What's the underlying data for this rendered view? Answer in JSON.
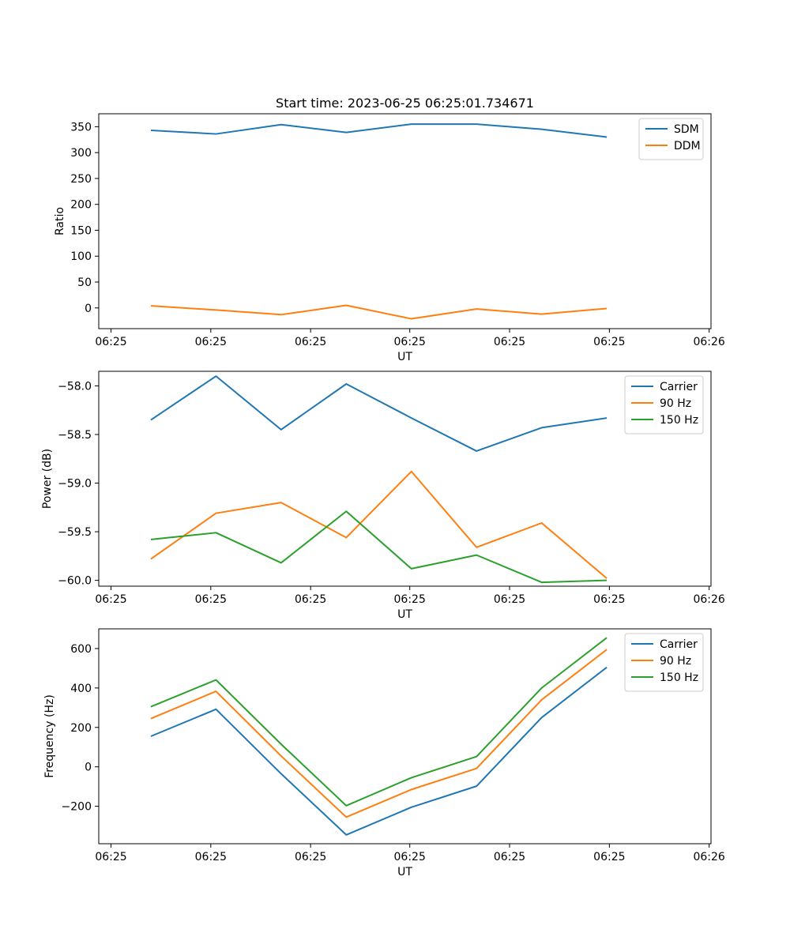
{
  "figure": {
    "title": "Start time: 2023-06-25 06:25:01.734671"
  },
  "colors": {
    "blue": "#1f77b4",
    "orange": "#ff7f0e",
    "green": "#2ca02c"
  },
  "chart_data": [
    {
      "type": "line",
      "title": "Start time: 2023-06-25 06:25:01.734671",
      "xlabel": "UT",
      "ylabel": "Ratio",
      "x": [
        "06:25:02.5",
        "06:25:03.0",
        "06:25:03.5",
        "06:25:04.0",
        "06:25:04.5",
        "06:25:05.0",
        "06:25:05.5",
        "06:25:06.0"
      ],
      "xlim": [
        "06:25:02.1",
        "06:25:06.8"
      ],
      "xtick_labels": [
        "06:25",
        "06:25",
        "06:25",
        "06:25",
        "06:25",
        "06:25",
        "06:26"
      ],
      "ylim": [
        -40,
        375
      ],
      "yticks": [
        0,
        50,
        100,
        150,
        200,
        250,
        300,
        350
      ],
      "legend": "top-right",
      "grid": false,
      "series": [
        {
          "name": "SDM",
          "color": "#1f77b4",
          "values": [
            343,
            336,
            354,
            339,
            355,
            355,
            345,
            330
          ]
        },
        {
          "name": "DDM",
          "color": "#ff7f0e",
          "values": [
            4,
            -4,
            -13,
            5,
            -21,
            -2,
            -12,
            -1
          ]
        }
      ]
    },
    {
      "type": "line",
      "title": "",
      "xlabel": "UT",
      "ylabel": "Power (dB)",
      "x": [
        "06:25:02.5",
        "06:25:03.0",
        "06:25:03.5",
        "06:25:04.0",
        "06:25:04.5",
        "06:25:05.0",
        "06:25:05.5",
        "06:25:06.0"
      ],
      "xlim": [
        "06:25:02.1",
        "06:25:06.8"
      ],
      "xtick_labels": [
        "06:25",
        "06:25",
        "06:25",
        "06:25",
        "06:25",
        "06:25",
        "06:26"
      ],
      "ylim": [
        -60.06,
        -57.85
      ],
      "yticks": [
        -60.0,
        -59.5,
        -59.0,
        -58.5,
        -58.0
      ],
      "ytick_labels": [
        "−60.0",
        "−59.5",
        "−59.0",
        "−58.5",
        "−58.0"
      ],
      "legend": "top-right",
      "grid": false,
      "series": [
        {
          "name": "Carrier",
          "color": "#1f77b4",
          "values": [
            -58.35,
            -57.9,
            -58.45,
            -57.98,
            -58.33,
            -58.67,
            -58.43,
            -58.33
          ]
        },
        {
          "name": "90 Hz",
          "color": "#ff7f0e",
          "values": [
            -59.78,
            -59.31,
            -59.2,
            -59.56,
            -58.88,
            -59.66,
            -59.41,
            -59.98
          ]
        },
        {
          "name": "150 Hz",
          "color": "#2ca02c",
          "values": [
            -59.58,
            -59.51,
            -59.82,
            -59.29,
            -59.88,
            -59.74,
            -60.02,
            -60.0
          ]
        }
      ]
    },
    {
      "type": "line",
      "title": "",
      "xlabel": "UT",
      "ylabel": "Frequency (Hz)",
      "x": [
        "06:25:02.5",
        "06:25:03.0",
        "06:25:03.5",
        "06:25:04.0",
        "06:25:04.5",
        "06:25:05.0",
        "06:25:05.5",
        "06:25:06.0"
      ],
      "xlim": [
        "06:25:02.1",
        "06:25:06.8"
      ],
      "xtick_labels": [
        "06:25",
        "06:25",
        "06:25",
        "06:25",
        "06:25",
        "06:25",
        "06:26"
      ],
      "ylim": [
        -390,
        700
      ],
      "yticks": [
        -200,
        0,
        200,
        400,
        600
      ],
      "ytick_labels": [
        "−200",
        "0",
        "200",
        "400",
        "600"
      ],
      "legend": "top-right",
      "grid": false,
      "series": [
        {
          "name": "Carrier",
          "color": "#1f77b4",
          "values": [
            155,
            292,
            -35,
            -345,
            -205,
            -98,
            250,
            505
          ]
        },
        {
          "name": "90 Hz",
          "color": "#ff7f0e",
          "values": [
            245,
            383,
            55,
            -255,
            -115,
            -8,
            340,
            595
          ]
        },
        {
          "name": "150 Hz",
          "color": "#2ca02c",
          "values": [
            305,
            441,
            115,
            -197,
            -55,
            52,
            400,
            655
          ]
        }
      ]
    }
  ]
}
